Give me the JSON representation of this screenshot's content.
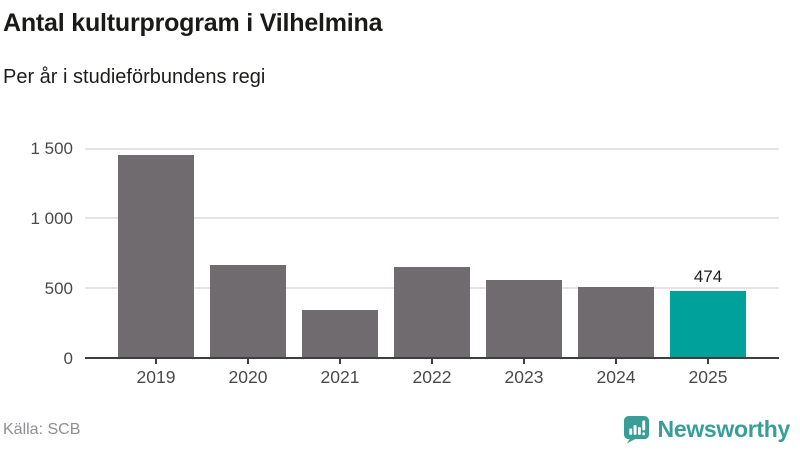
{
  "title": "Antal kulturprogram i Vilhelmina",
  "subtitle": "Per år i studieförbundens regi",
  "source": "Källa: SCB",
  "brand": "Newsworthy",
  "colors": {
    "bar": "#6f6b6f",
    "highlight": "#00a09b",
    "grid": "#e4e4e4",
    "axis": "#3f3f3f",
    "brand_teal": "#399e98"
  },
  "chart_data": {
    "type": "bar",
    "title": "Antal kulturprogram i Vilhelmina",
    "subtitle": "Per år i studieförbundens regi",
    "categories": [
      "2019",
      "2020",
      "2021",
      "2022",
      "2023",
      "2024",
      "2025"
    ],
    "values": [
      1478,
      662,
      341,
      648,
      557,
      503,
      474
    ],
    "bar_labels": [
      "",
      "",
      "",
      "",
      "",
      "",
      "474"
    ],
    "highlighted_index": 6,
    "xlabel": "",
    "ylabel": "",
    "ylim": [
      0,
      1500
    ],
    "yticks": [
      {
        "value": 0,
        "label": "0"
      },
      {
        "value": 500,
        "label": "500"
      },
      {
        "value": 1000,
        "label": "1 000"
      },
      {
        "value": 1500,
        "label": "1 500"
      }
    ],
    "grid": "horizontal",
    "legend": false,
    "source": "Källa: SCB"
  }
}
